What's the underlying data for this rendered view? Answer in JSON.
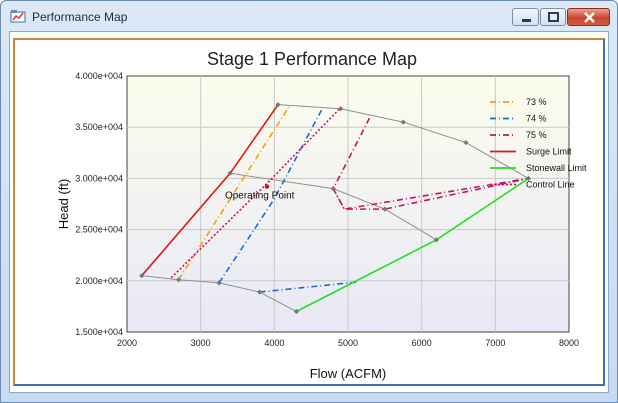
{
  "window": {
    "title": "Performance Map"
  },
  "chart_data": {
    "type": "line",
    "title": "Stage 1 Performance Map",
    "xlabel": "Flow (ACFM)",
    "ylabel": "Head (ft)",
    "xlim": [
      2000,
      8000
    ],
    "ylim": [
      15000,
      40000
    ],
    "x_ticks": [
      "2000",
      "3000",
      "4000",
      "5000",
      "6000",
      "7000",
      "8000"
    ],
    "y_ticks": [
      "1.500e+004",
      "2.000e+004",
      "2.500e+004",
      "3.000e+004",
      "3.500e+004",
      "4.000e+004"
    ],
    "grid": true,
    "legend_position": "right",
    "series": [
      {
        "name": "73 %",
        "color": "#f5a000",
        "dash": "dash-dot",
        "points": [
          [
            2700,
            20100
          ],
          [
            4200,
            37000
          ]
        ]
      },
      {
        "name": "74 %",
        "color": "#1a6bd6",
        "dash": "dash-dot",
        "points": [
          [
            3250,
            19800
          ],
          [
            4000,
            28000
          ],
          [
            4650,
            36800
          ]
        ]
      },
      {
        "name": "75 %",
        "color": "#c8106b",
        "dash": "dash-dot",
        "points": [
          [
            4800,
            29000
          ],
          [
            4950,
            27000
          ],
          [
            5500,
            27000
          ],
          [
            7450,
            30000
          ],
          [
            4950,
            27000
          ],
          [
            4800,
            29000
          ],
          [
            5300,
            36000
          ]
        ]
      },
      {
        "name": "Surge Limit",
        "color": "#e01616",
        "dash": "solid",
        "points": [
          [
            2200,
            20500
          ],
          [
            3400,
            30500
          ],
          [
            4050,
            37200
          ]
        ]
      },
      {
        "name": "Stonewall Limit",
        "color": "#22e022",
        "dash": "solid",
        "points": [
          [
            4300,
            17000
          ],
          [
            6200,
            24000
          ],
          [
            7450,
            30000
          ]
        ]
      },
      {
        "name": "Control Line",
        "color": "#c8106b",
        "dash": "dot",
        "points": [
          [
            2600,
            20300
          ],
          [
            3900,
            29500
          ],
          [
            4900,
            36900
          ]
        ]
      }
    ],
    "extra_lines": [
      {
        "color": "#1a6bd6",
        "dash": "dash-dot",
        "points": [
          [
            3800,
            18900
          ],
          [
            5150,
            19900
          ]
        ]
      }
    ],
    "constant_speed_curves": {
      "color": "#909090",
      "curves": [
        [
          [
            4050,
            37200
          ],
          [
            4900,
            36800
          ],
          [
            5750,
            35500
          ],
          [
            6600,
            33500
          ],
          [
            7450,
            30000
          ]
        ],
        [
          [
            3400,
            30500
          ],
          [
            4800,
            29000
          ],
          [
            5500,
            27000
          ],
          [
            6200,
            24000
          ]
        ],
        [
          [
            2200,
            20500
          ],
          [
            2700,
            20100
          ],
          [
            3250,
            19800
          ],
          [
            3800,
            18900
          ],
          [
            4300,
            17000
          ]
        ]
      ],
      "markers": [
        [
          4050,
          37200
        ],
        [
          4900,
          36800
        ],
        [
          5750,
          35500
        ],
        [
          6600,
          33500
        ],
        [
          7450,
          30000
        ],
        [
          3400,
          30500
        ],
        [
          4800,
          29000
        ],
        [
          5500,
          27000
        ],
        [
          6200,
          24000
        ],
        [
          2200,
          20500
        ],
        [
          2700,
          20100
        ],
        [
          3250,
          19800
        ],
        [
          3800,
          18900
        ],
        [
          4300,
          17000
        ]
      ]
    },
    "operating_point": {
      "label": "Operating Point",
      "x": 3900,
      "y": 29200
    }
  }
}
